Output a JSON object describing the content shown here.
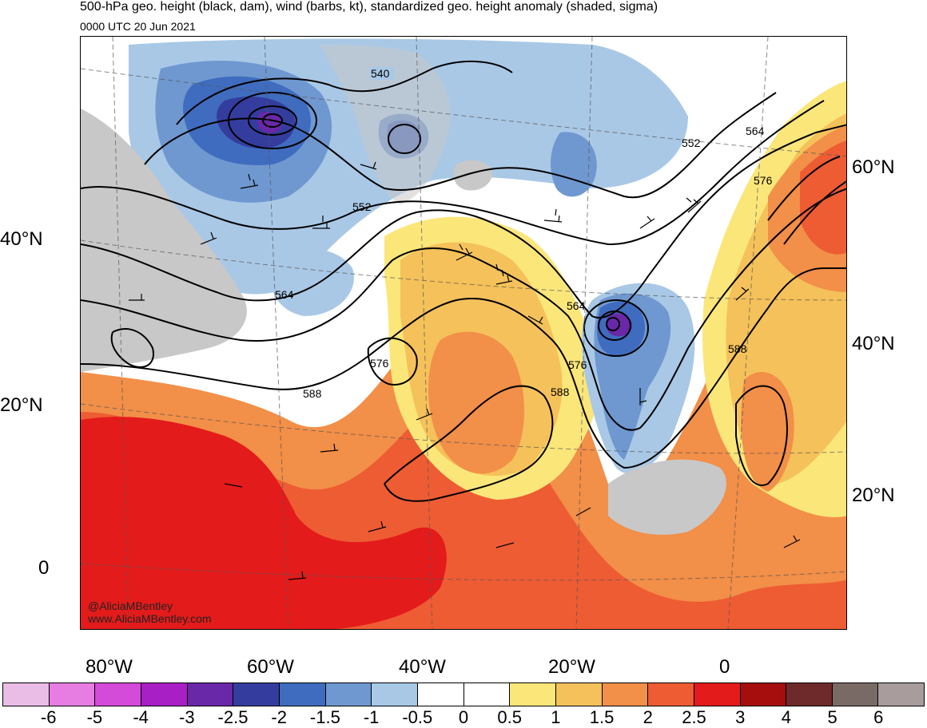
{
  "header": {
    "title": "500-hPa geo. height (black, dam), wind (barbs, kt), standardized geo. height anomaly (shaded, sigma)",
    "valid_time": "0000 UTC 20 Jun 2021"
  },
  "watermark": {
    "handle": "@AliciaMBentley",
    "website": "www.AliciaMBentley.com"
  },
  "axes": {
    "left_lat_labels": [
      "40°N",
      "20°N",
      "0"
    ],
    "right_lat_labels": [
      "60°N",
      "40°N",
      "20°N"
    ],
    "bottom_lon_labels": [
      "80°W",
      "60°W",
      "40°W",
      "20°W",
      "0"
    ]
  },
  "contour_labels": [
    "540",
    "552",
    "552",
    "564",
    "564",
    "564",
    "576",
    "576",
    "576",
    "588",
    "588",
    "588"
  ],
  "colorbar": {
    "ticks": [
      "-6",
      "-5",
      "-4",
      "-3",
      "-2.5",
      "-2",
      "-1.5",
      "-1",
      "-0.5",
      "0",
      "0.5",
      "1",
      "1.5",
      "2",
      "2.5",
      "3",
      "4",
      "5",
      "6"
    ],
    "colors": [
      "#e9bde6",
      "#e77de3",
      "#d44bd9",
      "#a91fc6",
      "#6928a8",
      "#343d9e",
      "#3f6cbe",
      "#6f98d0",
      "#a9c8e6",
      "#ffffff",
      "#ffffff",
      "#fbe67a",
      "#f5c15a",
      "#f28f48",
      "#ee5c33",
      "#e31b1b",
      "#a60d0d",
      "#6e2a2a",
      "#7a6a66",
      "#a89d9c"
    ]
  },
  "map_colors": {
    "land_gray": "#c8c8c8",
    "ocean_white": "#ffffff"
  }
}
